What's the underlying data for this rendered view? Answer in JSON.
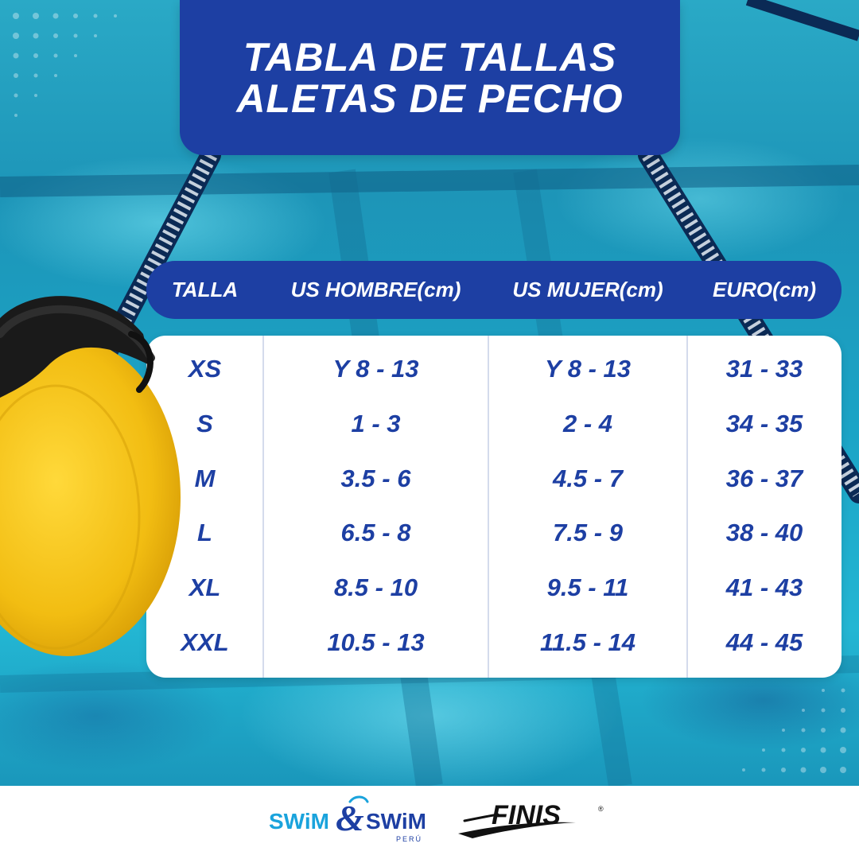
{
  "title": {
    "line1": "TABLA DE TALLAS",
    "line2": "ALETAS DE PECHO"
  },
  "size_table": {
    "headers": [
      "TALLA",
      "US HOMBRE(cm)",
      "US MUJER(cm)",
      "EURO(cm)"
    ],
    "rows": [
      [
        "XS",
        "Y 8 - 13",
        "Y 8 - 13",
        "31 - 33"
      ],
      [
        "S",
        "1 - 3",
        "2 - 4",
        "34 - 35"
      ],
      [
        "M",
        "3.5 - 6",
        "4.5 - 7",
        "36 - 37"
      ],
      [
        "L",
        "6.5 - 8",
        "7.5 - 9",
        "38 - 40"
      ],
      [
        "XL",
        "8.5 - 10",
        "9.5 - 11",
        "41 - 43"
      ],
      [
        "XXL",
        "10.5 - 13",
        "11.5 - 14",
        "44 - 45"
      ]
    ]
  },
  "footer": {
    "logos": [
      {
        "name": "swim-and-swim-peru-logo",
        "text": "SWiM&SWiM",
        "subtext": "PERÚ"
      },
      {
        "name": "finis-logo",
        "text": "FINIS"
      }
    ]
  },
  "colors": {
    "brand_blue": "#1d3fa3",
    "pool_teal": "#1da5c6",
    "paddle_yellow": "#f5c41a",
    "swim_logo_light_blue": "#1aa3dc"
  }
}
